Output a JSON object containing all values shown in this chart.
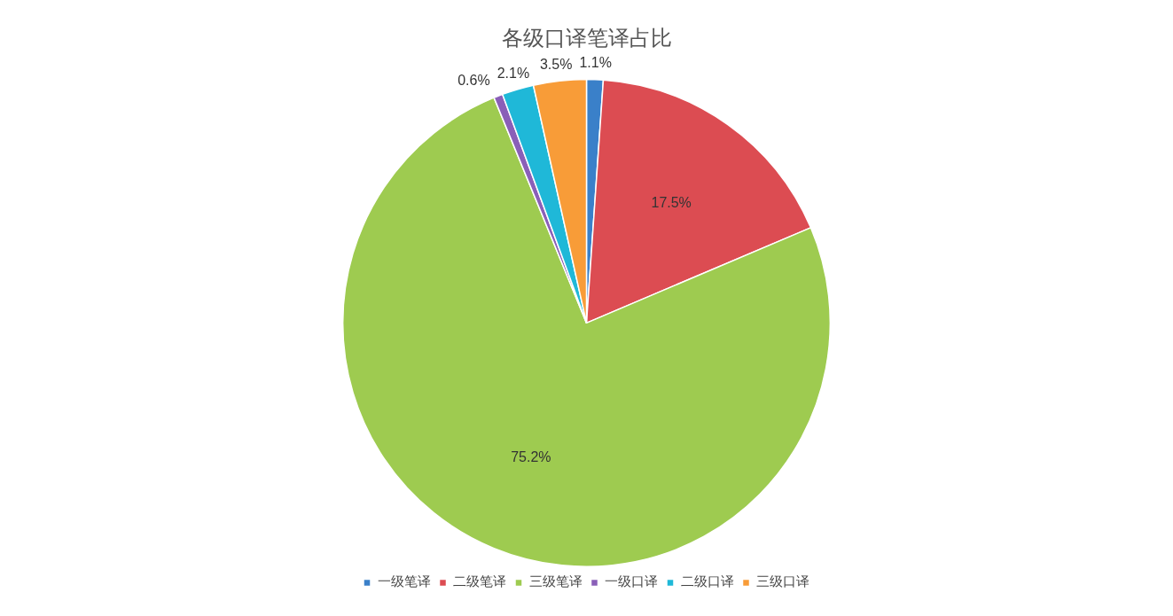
{
  "chart_data": {
    "type": "pie",
    "title": "各级口译笔译占比",
    "categories": [
      "一级笔译",
      "二级笔译",
      "三级笔译",
      "一级口译",
      "二级口译",
      "三级口译"
    ],
    "values": [
      1.1,
      17.5,
      75.2,
      0.6,
      2.1,
      3.5
    ],
    "colors": [
      "#3a80c9",
      "#dc4c52",
      "#9ecb50",
      "#8a5fb8",
      "#1fb8d8",
      "#f89c38"
    ],
    "value_labels": [
      "1.1%",
      "17.5%",
      "75.2%",
      "0.6%",
      "2.1%",
      "3.5%"
    ],
    "legend": "bottom"
  }
}
